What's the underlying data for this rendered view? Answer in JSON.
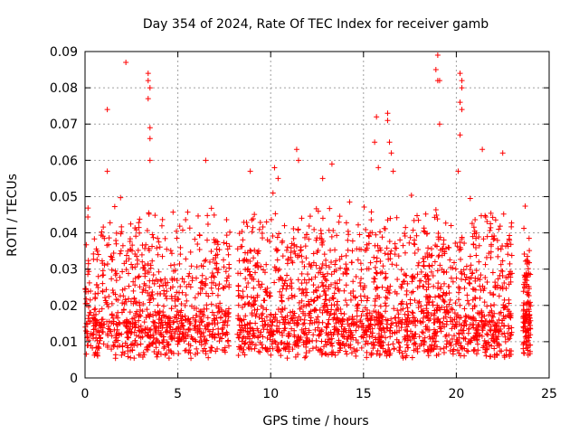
{
  "chart_data": {
    "type": "scatter",
    "title": "Day 354 of 2024, Rate Of TEC Index for receiver gamb",
    "xlabel": "GPS time / hours",
    "ylabel": "ROTI / TECUs",
    "xlim": [
      0,
      25
    ],
    "ylim": [
      0,
      0.09
    ],
    "xticks": [
      "0",
      "5",
      "10",
      "15",
      "20",
      "25"
    ],
    "xtick_values": [
      0,
      5,
      10,
      15,
      20,
      25
    ],
    "yticks": [
      "0",
      "0.01",
      "0.02",
      "0.03",
      "0.04",
      "0.05",
      "0.06",
      "0.07",
      "0.08",
      "0.09"
    ],
    "ytick_values": [
      0,
      0.01,
      0.02,
      0.03,
      0.04,
      0.05,
      0.06,
      0.07,
      0.08,
      0.09
    ],
    "grid": true,
    "marker": "+",
    "color": "#ff0000",
    "series": [
      {
        "name": "ROTI",
        "description": "dense cloud of points between 0 and 23 h, mostly 0.005-0.03 TECU/s, with a data gap near 7.8-8.2 h and a short separate cluster near 23.5-24 h",
        "segments": [
          {
            "x0": 0.0,
            "x1": 7.8,
            "base": 0.012,
            "spread": 0.02,
            "density": 900
          },
          {
            "x0": 8.2,
            "x1": 23.0,
            "base": 0.012,
            "spread": 0.02,
            "density": 1800
          },
          {
            "x0": 23.6,
            "x1": 24.0,
            "base": 0.013,
            "spread": 0.015,
            "density": 120
          }
        ],
        "outliers": [
          [
            1.2,
            0.074
          ],
          [
            2.2,
            0.087
          ],
          [
            3.4,
            0.084
          ],
          [
            3.4,
            0.082
          ],
          [
            3.5,
            0.08
          ],
          [
            3.4,
            0.077
          ],
          [
            3.5,
            0.069
          ],
          [
            3.5,
            0.066
          ],
          [
            3.5,
            0.06
          ],
          [
            1.2,
            0.057
          ],
          [
            6.5,
            0.06
          ],
          [
            8.9,
            0.057
          ],
          [
            11.4,
            0.063
          ],
          [
            11.5,
            0.06
          ],
          [
            13.3,
            0.059
          ],
          [
            15.7,
            0.072
          ],
          [
            15.6,
            0.065
          ],
          [
            16.3,
            0.073
          ],
          [
            16.3,
            0.071
          ],
          [
            16.4,
            0.065
          ],
          [
            16.5,
            0.062
          ],
          [
            16.6,
            0.057
          ],
          [
            19.0,
            0.089
          ],
          [
            18.9,
            0.085
          ],
          [
            19.0,
            0.082
          ],
          [
            19.1,
            0.082
          ],
          [
            19.1,
            0.07
          ],
          [
            20.2,
            0.084
          ],
          [
            20.3,
            0.082
          ],
          [
            20.3,
            0.08
          ],
          [
            20.2,
            0.076
          ],
          [
            20.3,
            0.074
          ],
          [
            20.2,
            0.067
          ],
          [
            20.1,
            0.057
          ],
          [
            21.4,
            0.063
          ],
          [
            22.5,
            0.062
          ],
          [
            15.8,
            0.058
          ],
          [
            12.8,
            0.055
          ],
          [
            10.4,
            0.055
          ]
        ]
      }
    ]
  }
}
